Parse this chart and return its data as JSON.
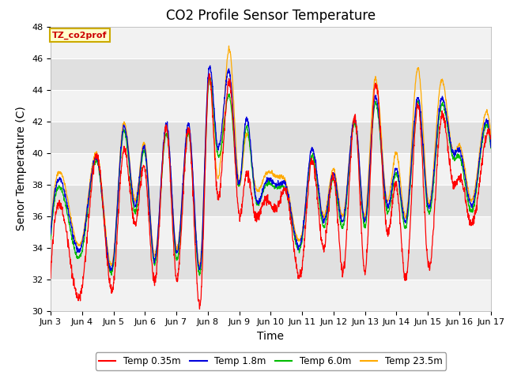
{
  "title": "CO2 Profile Sensor Temperature",
  "ylabel": "Senor Temperature (C)",
  "xlabel": "Time",
  "annotation": "TZ_co2prof",
  "ylim": [
    30,
    48
  ],
  "xlim_days": [
    3,
    17
  ],
  "legend_labels": [
    "Temp 0.35m",
    "Temp 1.8m",
    "Temp 6.0m",
    "Temp 23.5m"
  ],
  "legend_colors": [
    "#ff0000",
    "#0000dd",
    "#00bb00",
    "#ffaa00"
  ],
  "band_colors": [
    "#f2f2f2",
    "#e0e0e0"
  ],
  "title_fontsize": 12,
  "axis_fontsize": 10,
  "tick_fontsize": 8,
  "annotation_facecolor": "#ffffcc",
  "annotation_edgecolor": "#ccaa00",
  "annotation_textcolor": "#cc0000"
}
